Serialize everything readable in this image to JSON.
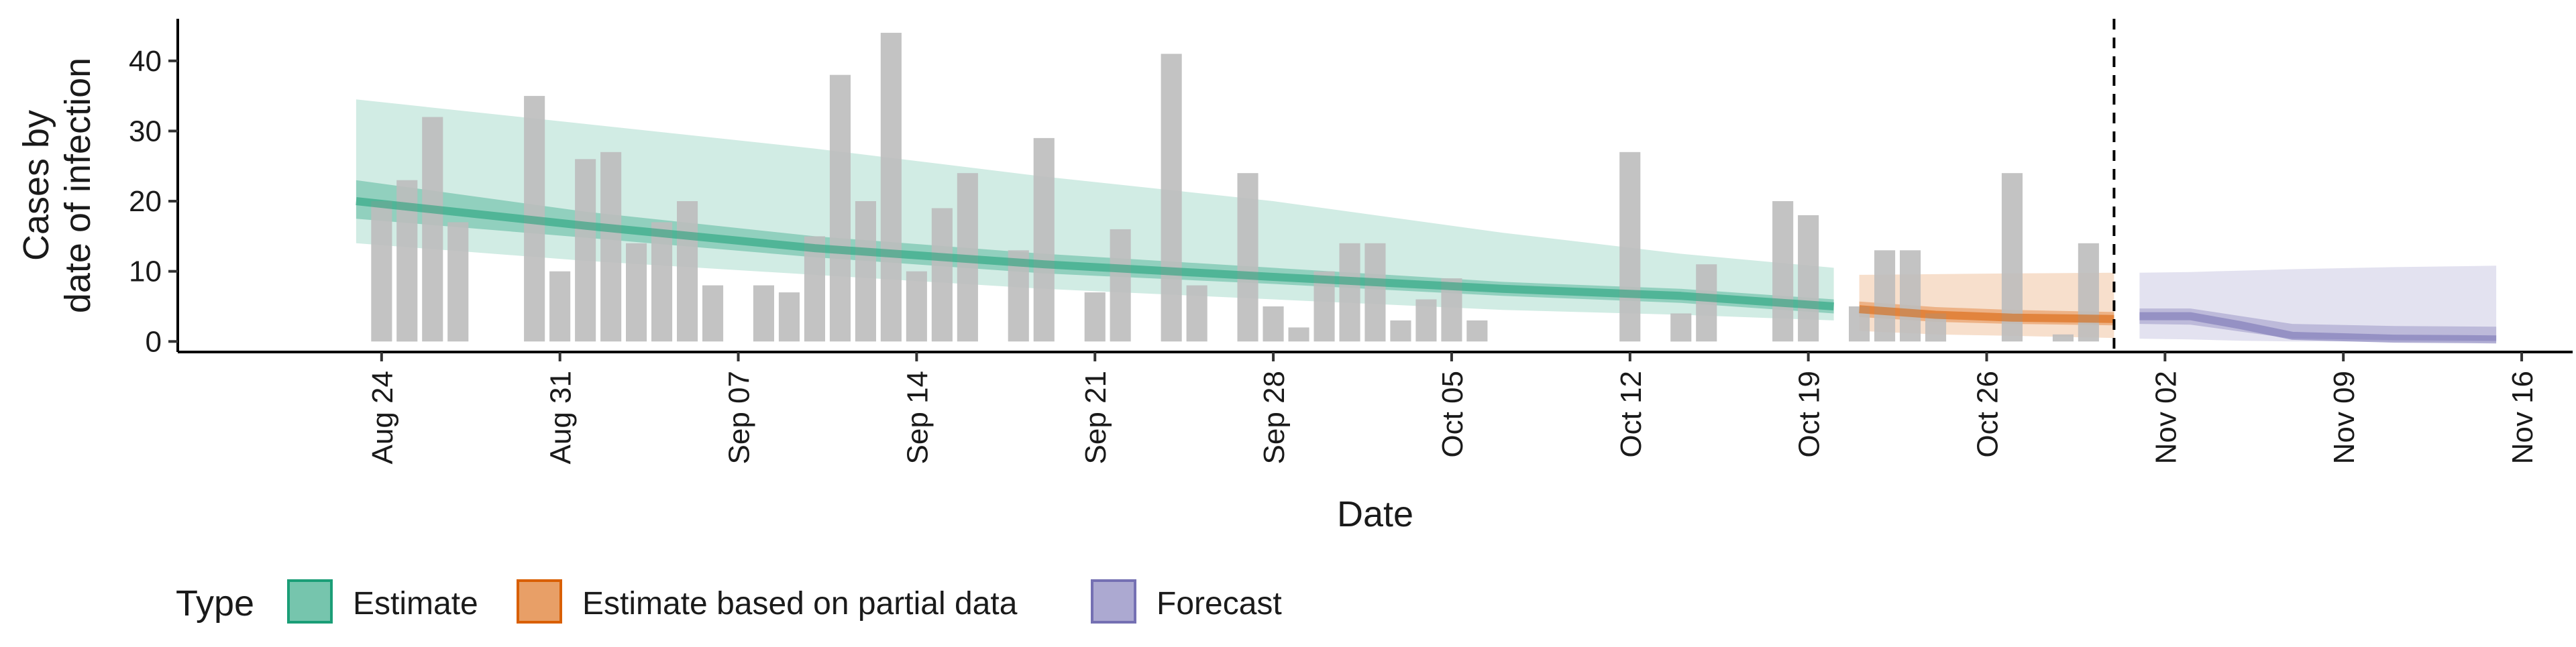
{
  "chart_data": {
    "type": "bar",
    "title": "",
    "xlabel": "Date",
    "ylabel": [
      "Cases by",
      "date of infection"
    ],
    "xlim": [
      "2020-08-16",
      "2020-11-18"
    ],
    "ylim": [
      -1.5,
      46
    ],
    "yticks": [
      0,
      10,
      20,
      30,
      40
    ],
    "xticks": [
      "2020-08-24",
      "2020-08-31",
      "2020-09-07",
      "2020-09-14",
      "2020-09-21",
      "2020-09-28",
      "2020-10-05",
      "2020-10-12",
      "2020-10-19",
      "2020-10-26",
      "2020-11-02",
      "2020-11-09",
      "2020-11-16"
    ],
    "xtick_labels": [
      "Aug 24",
      "Aug 31",
      "Sep 07",
      "Sep 14",
      "Sep 21",
      "Sep 28",
      "Oct 05",
      "Oct 12",
      "Oct 19",
      "Oct 26",
      "Nov 02",
      "Nov 09",
      "Nov 16"
    ],
    "vline": "2020-10-31",
    "grid": false,
    "legend": {
      "title": "Type",
      "position": "bottom-left",
      "entries": [
        {
          "label": "Estimate",
          "color": "#1b9e77"
        },
        {
          "label": "Estimate based on partial data",
          "color": "#d95f02"
        },
        {
          "label": "Forecast",
          "color": "#7570b3"
        }
      ]
    },
    "colors": {
      "bars": "#bdbdbd",
      "estimate": "#1b9e77",
      "partial": "#d95f02",
      "forecast": "#7570b3"
    },
    "bars": {
      "start_date": "2020-08-24",
      "values": [
        20,
        23,
        32,
        17,
        0,
        0,
        35,
        10,
        26,
        27,
        14,
        17,
        20,
        8,
        0,
        8,
        7,
        15,
        38,
        20,
        44,
        10,
        19,
        24,
        0,
        13,
        29,
        0,
        7,
        16,
        0,
        41,
        8,
        0,
        24,
        5,
        2,
        10,
        14,
        14,
        3,
        6,
        9,
        3,
        0,
        0,
        0,
        0,
        0,
        27,
        0,
        4,
        11,
        0,
        0,
        20,
        18,
        0,
        5,
        13,
        13,
        4,
        0,
        0,
        24,
        0,
        1,
        14,
        0,
        0
      ]
    },
    "series": [
      {
        "name": "Estimate",
        "x": [
          "2020-08-23",
          "2020-09-01",
          "2020-09-10",
          "2020-09-19",
          "2020-09-28",
          "2020-10-07",
          "2020-10-14",
          "2020-10-20"
        ],
        "median": [
          20,
          16.5,
          13.3,
          11,
          9.2,
          7.5,
          6.5,
          5
        ],
        "lower_50": [
          17.5,
          14.8,
          12,
          9.7,
          8.2,
          6.5,
          5.5,
          4
        ],
        "upper_50": [
          23,
          18.5,
          15,
          12.5,
          10.5,
          8.5,
          7.5,
          6
        ],
        "lower_90": [
          14,
          11.5,
          9.5,
          7.5,
          6,
          4.5,
          3.8,
          3
        ],
        "upper_90": [
          34.5,
          31,
          27.5,
          23.5,
          20,
          15.5,
          12.5,
          10.5
        ]
      },
      {
        "name": "Estimate based on partial data",
        "x": [
          "2020-10-21",
          "2020-10-24",
          "2020-10-27",
          "2020-10-31"
        ],
        "median": [
          4.6,
          3.8,
          3.4,
          3.2
        ],
        "lower_50": [
          3.5,
          2.8,
          2.5,
          2.3
        ],
        "upper_50": [
          5.7,
          4.9,
          4.5,
          4.2
        ],
        "lower_90": [
          1.5,
          1,
          0.8,
          0.5
        ],
        "upper_90": [
          9.5,
          9.6,
          9.7,
          9.8
        ]
      },
      {
        "name": "Forecast",
        "x": [
          "2020-11-01",
          "2020-11-03",
          "2020-11-05",
          "2020-11-07",
          "2020-11-11",
          "2020-11-15"
        ],
        "median": [
          3.6,
          3.6,
          2.3,
          0.8,
          0.4,
          0.3
        ],
        "lower_50": [
          2.5,
          2.4,
          1.4,
          0.4,
          0.2,
          0.1
        ],
        "upper_50": [
          4.7,
          4.7,
          3.6,
          2.5,
          2.2,
          2.1
        ],
        "lower_90": [
          0.4,
          0.3,
          0.1,
          0,
          0,
          0
        ],
        "upper_90": [
          9.8,
          9.9,
          10.1,
          10.3,
          10.6,
          10.8
        ]
      }
    ]
  }
}
